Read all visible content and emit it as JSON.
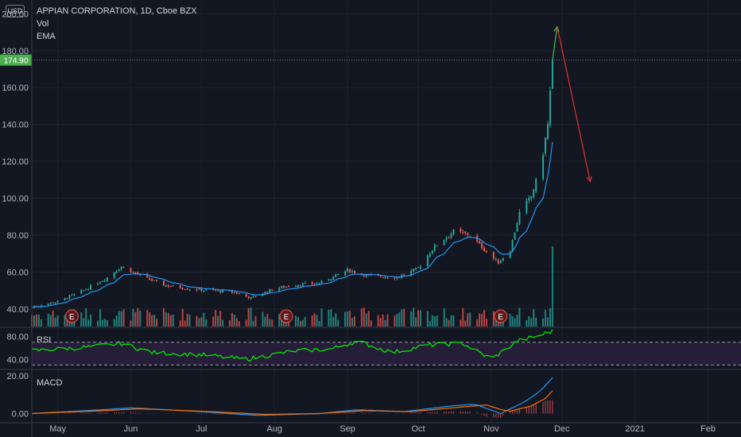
{
  "header": {
    "currency": "USD",
    "title": "APPIAN CORPORATION, 1D, Cboe BZX",
    "indicator_vol": "Vol",
    "indicator_ema": "EMA"
  },
  "panes": {
    "rsi_label": "RSI",
    "macd_label": "MACD"
  },
  "price_badge": "174.90",
  "earnings_marker": "E",
  "colors": {
    "background": "#131722",
    "up": "#26a69a",
    "down": "#ef5350",
    "ema": "#2196f3",
    "rsi": "#00e600",
    "macd_fast": "#2196f3",
    "macd_slow": "#ff6d00",
    "badge": "#4caf50"
  },
  "chart_data": [
    {
      "type": "candlestick",
      "title": "APPIAN CORPORATION, 1D, Cboe BZX",
      "x_ticks": [
        "May",
        "Jun",
        "Jul",
        "Aug",
        "Sep",
        "Oct",
        "Nov",
        "Dec",
        "2021",
        "Feb"
      ],
      "y_ticks": [
        40,
        60,
        80,
        100,
        120,
        140,
        160,
        180,
        200
      ],
      "y_tick_labels": [
        "40.00",
        "60.00",
        "80.00",
        "100.00",
        "120.00",
        "140.00",
        "160.00",
        "180.00",
        "200.00"
      ],
      "ylim": [
        30,
        201
      ],
      "last_price": 174.9,
      "close_trend_points": [
        [
          "2020-04-20",
          41
        ],
        [
          "2020-05-01",
          44
        ],
        [
          "2020-05-12",
          50
        ],
        [
          "2020-05-22",
          57
        ],
        [
          "2020-05-28",
          63
        ],
        [
          "2020-06-05",
          58
        ],
        [
          "2020-06-15",
          53
        ],
        [
          "2020-06-25",
          51
        ],
        [
          "2020-07-05",
          50
        ],
        [
          "2020-07-15",
          49
        ],
        [
          "2020-07-22",
          46
        ],
        [
          "2020-08-01",
          51
        ],
        [
          "2020-08-10",
          53
        ],
        [
          "2020-08-20",
          54
        ],
        [
          "2020-09-01",
          61
        ],
        [
          "2020-09-10",
          58
        ],
        [
          "2020-09-22",
          57
        ],
        [
          "2020-10-01",
          62
        ],
        [
          "2020-10-08",
          74
        ],
        [
          "2020-10-16",
          82
        ],
        [
          "2020-10-23",
          80
        ],
        [
          "2020-10-30",
          71
        ],
        [
          "2020-11-04",
          65
        ],
        [
          "2020-11-09",
          72
        ],
        [
          "2020-11-13",
          92
        ],
        [
          "2020-11-18",
          101
        ],
        [
          "2020-11-22",
          117
        ],
        [
          "2020-11-25",
          140
        ],
        [
          "2020-11-27",
          174.9
        ]
      ],
      "annotations": [
        {
          "type": "arrow",
          "from": [
            "2020-11-27",
            175
          ],
          "to": [
            "2020-11-29",
            193
          ],
          "color": "#4caf50"
        },
        {
          "type": "arrow",
          "from": [
            "2020-11-29",
            193
          ],
          "to": [
            "2020-12-13",
            109
          ],
          "color": "#d32f2f"
        }
      ],
      "earnings_dates": [
        "2020-05-07",
        "2020-08-06",
        "2020-11-05"
      ]
    },
    {
      "type": "bar",
      "title": "Vol",
      "note": "volume histogram, relative",
      "spike_date": "2020-11-27"
    },
    {
      "type": "line",
      "title": "RSI",
      "y_ticks": [
        40,
        80
      ],
      "y_tick_labels": [
        "40.00",
        "80.00"
      ],
      "bands": [
        30,
        70
      ],
      "ylim": [
        25,
        92
      ],
      "points": [
        [
          "2020-04-20",
          55
        ],
        [
          "2020-05-01",
          58
        ],
        [
          "2020-05-15",
          62
        ],
        [
          "2020-05-28",
          68
        ],
        [
          "2020-06-10",
          52
        ],
        [
          "2020-07-01",
          48
        ],
        [
          "2020-07-20",
          40
        ],
        [
          "2020-08-10",
          55
        ],
        [
          "2020-08-25",
          58
        ],
        [
          "2020-09-05",
          72
        ],
        [
          "2020-09-20",
          52
        ],
        [
          "2020-10-05",
          65
        ],
        [
          "2020-10-20",
          68
        ],
        [
          "2020-11-01",
          40
        ],
        [
          "2020-11-12",
          72
        ],
        [
          "2020-11-20",
          80
        ],
        [
          "2020-11-27",
          90
        ]
      ]
    },
    {
      "type": "line",
      "title": "MACD",
      "y_ticks": [
        0,
        20
      ],
      "y_tick_labels": [
        "0.00",
        "20.00"
      ],
      "ylim": [
        -4,
        22
      ],
      "series": [
        {
          "points": [
            [
              "2020-04-20",
              0
            ],
            [
              "2020-05-20",
              2
            ],
            [
              "2020-06-01",
              3
            ],
            [
              "2020-07-01",
              1
            ],
            [
              "2020-07-25",
              -1
            ],
            [
              "2020-08-20",
              0
            ],
            [
              "2020-09-05",
              2
            ],
            [
              "2020-09-25",
              1
            ],
            [
              "2020-10-15",
              4
            ],
            [
              "2020-10-25",
              5
            ],
            [
              "2020-11-05",
              0
            ],
            [
              "2020-11-15",
              6
            ],
            [
              "2020-11-22",
              12
            ],
            [
              "2020-11-27",
              19
            ]
          ]
        },
        {
          "points": [
            [
              "2020-04-20",
              0
            ],
            [
              "2020-05-20",
              1.5
            ],
            [
              "2020-06-05",
              2.5
            ],
            [
              "2020-07-05",
              1
            ],
            [
              "2020-07-28",
              -0.5
            ],
            [
              "2020-08-20",
              0
            ],
            [
              "2020-09-08",
              1.5
            ],
            [
              "2020-09-28",
              1
            ],
            [
              "2020-10-20",
              3.5
            ],
            [
              "2020-10-30",
              4.5
            ],
            [
              "2020-11-08",
              1
            ],
            [
              "2020-11-18",
              4
            ],
            [
              "2020-11-24",
              8
            ],
            [
              "2020-11-27",
              12
            ]
          ]
        }
      ]
    }
  ]
}
